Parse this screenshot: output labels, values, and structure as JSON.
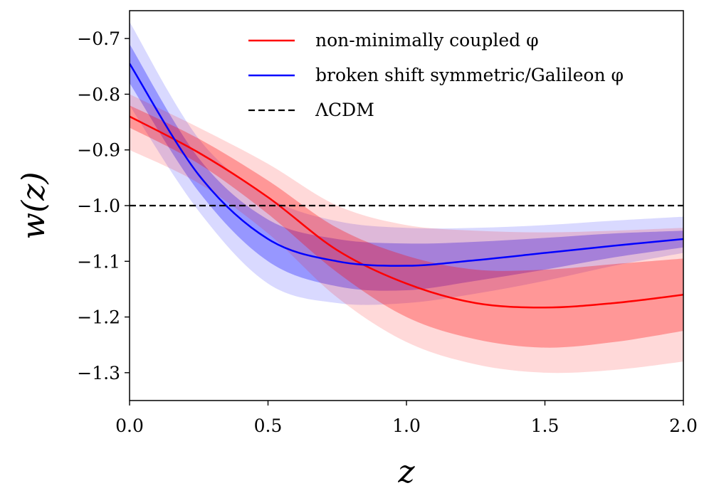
{
  "chart_data": {
    "type": "line",
    "title": "",
    "xlabel": "z",
    "ylabel": "w(z)",
    "xlim": [
      0,
      2
    ],
    "ylim": [
      -1.35,
      -0.65
    ],
    "xticks": [
      0.0,
      0.5,
      1.0,
      1.5,
      2.0
    ],
    "xtick_labels": [
      "0.0",
      "0.5",
      "1.0",
      "1.5",
      "2.0"
    ],
    "yticks": [
      -0.7,
      -0.8,
      -0.9,
      -1.0,
      -1.1,
      -1.2,
      -1.3
    ],
    "ytick_labels": [
      "−0.7",
      "−0.8",
      "−0.9",
      "−1.0",
      "−1.1",
      "−1.2",
      "−1.3"
    ],
    "grid": false,
    "legend_position": "top-right",
    "x": [
      0.0,
      0.25,
      0.5,
      0.75,
      1.0,
      1.25,
      1.5,
      1.75,
      2.0
    ],
    "series": [
      {
        "name": "non-minimally coupled φ",
        "color": "#ff0000",
        "band_color": "#ff0000",
        "values": [
          -0.84,
          -0.905,
          -0.985,
          -1.08,
          -1.14,
          -1.175,
          -1.183,
          -1.175,
          -1.16
        ],
        "band1_low": [
          -0.86,
          -0.925,
          -1.015,
          -1.12,
          -1.2,
          -1.24,
          -1.255,
          -1.245,
          -1.225
        ],
        "band1_high": [
          -0.82,
          -0.88,
          -0.955,
          -1.04,
          -1.09,
          -1.115,
          -1.115,
          -1.105,
          -1.095
        ],
        "band2_low": [
          -0.9,
          -0.96,
          -1.05,
          -1.165,
          -1.245,
          -1.285,
          -1.3,
          -1.295,
          -1.28
        ],
        "band2_high": [
          -0.8,
          -0.86,
          -0.925,
          -1.0,
          -1.035,
          -1.045,
          -1.048,
          -1.045,
          -1.04
        ]
      },
      {
        "name": "broken shift symmetric/Galileon φ",
        "color": "#0000ff",
        "band_color": "#0000ff",
        "values": [
          -0.745,
          -0.945,
          -1.06,
          -1.1,
          -1.108,
          -1.098,
          -1.085,
          -1.072,
          -1.06
        ],
        "band1_low": [
          -0.78,
          -0.975,
          -1.1,
          -1.145,
          -1.152,
          -1.135,
          -1.115,
          -1.093,
          -1.075
        ],
        "band1_high": [
          -0.71,
          -0.915,
          -1.025,
          -1.06,
          -1.068,
          -1.065,
          -1.058,
          -1.05,
          -1.045
        ],
        "band2_low": [
          -0.82,
          -1.01,
          -1.14,
          -1.175,
          -1.175,
          -1.158,
          -1.135,
          -1.108,
          -1.085
        ],
        "band2_high": [
          -0.67,
          -0.88,
          -0.985,
          -1.028,
          -1.04,
          -1.04,
          -1.035,
          -1.027,
          -1.02
        ]
      },
      {
        "name": "ΛCDM",
        "color": "#000000",
        "dashed": true,
        "values": [
          -1.0,
          -1.0,
          -1.0,
          -1.0,
          -1.0,
          -1.0,
          -1.0,
          -1.0,
          -1.0
        ]
      }
    ]
  }
}
